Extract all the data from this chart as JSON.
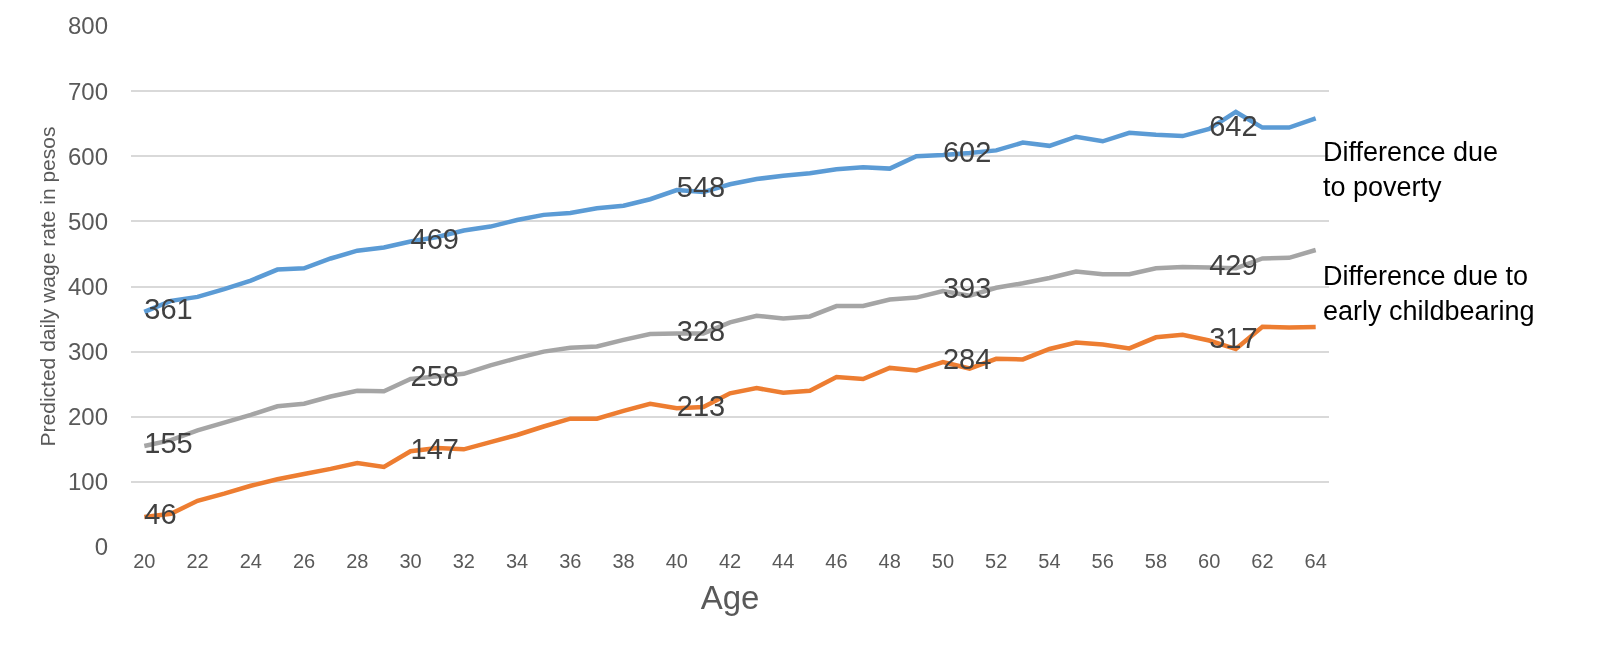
{
  "chart_data": {
    "type": "line",
    "ylabel": "Predicted daily wage rate in pesos",
    "xlabel": "Age",
    "categories": [
      "20",
      null,
      "22",
      null,
      "24",
      null,
      "26",
      null,
      "28",
      null,
      "30",
      null,
      "32",
      null,
      "34",
      null,
      "36",
      null,
      "38",
      null,
      "40",
      null,
      "42",
      null,
      "44",
      null,
      "46",
      null,
      "48",
      null,
      "50",
      null,
      "52",
      null,
      "54",
      null,
      "56",
      null,
      "58",
      null,
      "60",
      null,
      "62",
      null,
      "64"
    ],
    "ylim": [
      0,
      800
    ],
    "yticks": [
      0,
      100,
      200,
      300,
      400,
      500,
      600,
      700,
      800
    ],
    "grid": "y",
    "legend": false,
    "marker": "none",
    "line_style": "solid",
    "series": [
      {
        "name": "Difference due to poverty",
        "color": "#5b9bd5",
        "values": [
          361,
          378,
          384,
          396,
          409,
          426,
          428,
          443,
          455,
          460,
          469,
          476,
          486,
          492,
          502,
          510,
          513,
          520,
          524,
          534,
          548,
          545,
          557,
          565,
          570,
          574,
          580,
          583,
          581,
          600,
          602,
          605,
          609,
          621,
          616,
          630,
          623,
          636,
          633,
          631,
          642,
          668,
          644,
          644,
          658
        ],
        "value_labels": [
          "361",
          null,
          null,
          null,
          null,
          null,
          null,
          null,
          null,
          null,
          "469",
          null,
          null,
          null,
          null,
          null,
          null,
          null,
          null,
          null,
          "548",
          null,
          null,
          null,
          null,
          null,
          null,
          null,
          null,
          null,
          "602",
          null,
          null,
          null,
          null,
          null,
          null,
          null,
          null,
          null,
          "642",
          null,
          null,
          null,
          null
        ]
      },
      {
        "name": "Difference due to early childbearing",
        "color": "#a5a5a5",
        "values": [
          155,
          164,
          179,
          191,
          203,
          216,
          220,
          231,
          240,
          239,
          258,
          262,
          266,
          279,
          290,
          300,
          306,
          308,
          318,
          327,
          328,
          328,
          345,
          355,
          351,
          354,
          370,
          370,
          380,
          383,
          393,
          386,
          398,
          405,
          413,
          423,
          419,
          419,
          428,
          430,
          429,
          428,
          443,
          444,
          456
        ],
        "value_labels": [
          "155",
          null,
          null,
          null,
          null,
          null,
          null,
          null,
          null,
          null,
          "258",
          null,
          null,
          null,
          null,
          null,
          null,
          null,
          null,
          null,
          "328",
          null,
          null,
          null,
          null,
          null,
          null,
          null,
          null,
          null,
          "393",
          null,
          null,
          null,
          null,
          null,
          null,
          null,
          null,
          null,
          "429",
          null,
          null,
          null,
          null
        ]
      },
      {
        "color": "#ed7d31",
        "values": [
          46,
          51,
          71,
          82,
          94,
          104,
          112,
          120,
          129,
          123,
          147,
          152,
          150,
          161,
          172,
          185,
          197,
          197,
          209,
          220,
          213,
          215,
          236,
          244,
          237,
          240,
          261,
          258,
          275,
          271,
          284,
          274,
          289,
          288,
          304,
          314,
          311,
          305,
          322,
          326,
          317,
          304,
          338,
          337,
          338
        ],
        "value_labels": [
          "46",
          null,
          null,
          null,
          null,
          null,
          null,
          null,
          null,
          null,
          "147",
          null,
          null,
          null,
          null,
          null,
          null,
          null,
          null,
          null,
          "213",
          null,
          null,
          null,
          null,
          null,
          null,
          null,
          null,
          null,
          "284",
          null,
          null,
          null,
          null,
          null,
          null,
          null,
          null,
          null,
          "317",
          null,
          null,
          null,
          null
        ]
      }
    ]
  }
}
